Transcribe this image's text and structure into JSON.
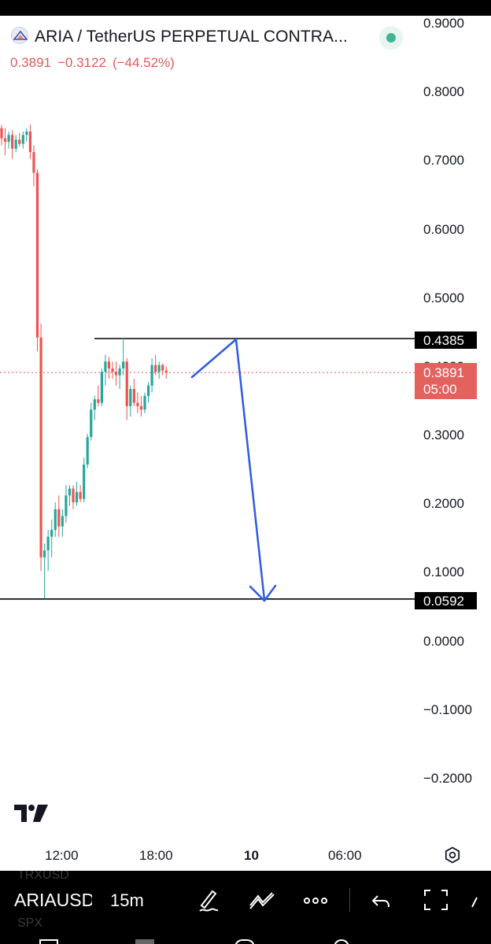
{
  "header": {
    "title": "ARIA / TetherUS PERPETUAL CONTRA...",
    "price": "0.3891",
    "change": "−0.3122",
    "change_pct": "(−44.52%)"
  },
  "price_axis": {
    "labels": [
      "0.9000",
      "0.8000",
      "0.7000",
      "0.6000",
      "0.5000",
      "0.4000",
      "0.3000",
      "0.2000",
      "0.1000",
      "0.0000",
      "−0.1000",
      "−0.2000"
    ]
  },
  "price_tags": {
    "upper": "0.4385",
    "lower": "0.0592",
    "current_price": "0.3891",
    "countdown": "05:00"
  },
  "time_axis": {
    "labels": [
      "12:00",
      "18:00",
      "10",
      "06:00"
    ]
  },
  "bottom_toolbar": {
    "ghost_above": "TRXUSD",
    "symbol": "ARIAUSDT",
    "ghost_below": "SPX",
    "interval": "15m"
  },
  "colors": {
    "up": "#26a69a",
    "down": "#ef5350",
    "drawing": "#2f5be0",
    "current_price_tag": "#e3625e",
    "status_dot": "#3fb596"
  },
  "icons": [
    "symbol-logo-icon",
    "status-dot-icon",
    "tradingview-logo-icon",
    "settings-icon",
    "brush-icon",
    "drawing-tools-icon",
    "more-icon",
    "undo-icon",
    "fullscreen-icon"
  ]
}
